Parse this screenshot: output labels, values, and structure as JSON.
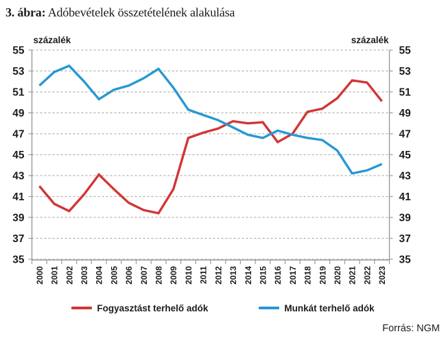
{
  "title": {
    "prefix": "3. ábra:",
    "text": " Adóbevételek összetételének alakulása"
  },
  "source": "Forrás: NGM",
  "chart_data": {
    "type": "line",
    "categories": [
      "2000",
      "2001",
      "2002",
      "2003",
      "2004",
      "2005",
      "2006",
      "2007",
      "2008",
      "2009",
      "2010",
      "2011",
      "2012",
      "2013",
      "2014",
      "2015",
      "2016",
      "2017",
      "2018",
      "2019",
      "2020",
      "2021",
      "2022",
      "2023"
    ],
    "series": [
      {
        "key": "consumption-taxes",
        "name": "Fogyasztást terhelő adók",
        "color": "#d13636",
        "values": [
          42.0,
          40.3,
          39.6,
          41.2,
          43.1,
          41.7,
          40.4,
          39.7,
          39.4,
          41.7,
          46.6,
          47.1,
          47.5,
          48.2,
          48.0,
          48.1,
          46.2,
          47.0,
          49.1,
          49.4,
          50.4,
          52.1,
          51.9,
          50.1
        ]
      },
      {
        "key": "labor-taxes",
        "name": "Munkát terhelő adók",
        "color": "#2898d2",
        "values": [
          51.6,
          52.9,
          53.5,
          52.0,
          50.3,
          51.2,
          51.6,
          52.3,
          53.2,
          51.4,
          49.3,
          48.8,
          48.3,
          47.6,
          46.9,
          46.6,
          47.3,
          46.9,
          46.6,
          46.4,
          45.4,
          43.2,
          43.5,
          44.1
        ]
      }
    ],
    "ylabel_left": "százalék",
    "ylabel_right": "százalék",
    "ylim": [
      35,
      55
    ],
    "ytick_step": 2,
    "yticks": [
      "55",
      "53",
      "51",
      "49",
      "47",
      "45",
      "43",
      "41",
      "39",
      "37",
      "35"
    ],
    "grid": "horizontal-dashed",
    "legend_position": "bottom",
    "colors": {
      "gridline": "#b0b0b0",
      "axis": "#9a9a9a",
      "text": "#1c1c1c"
    }
  }
}
